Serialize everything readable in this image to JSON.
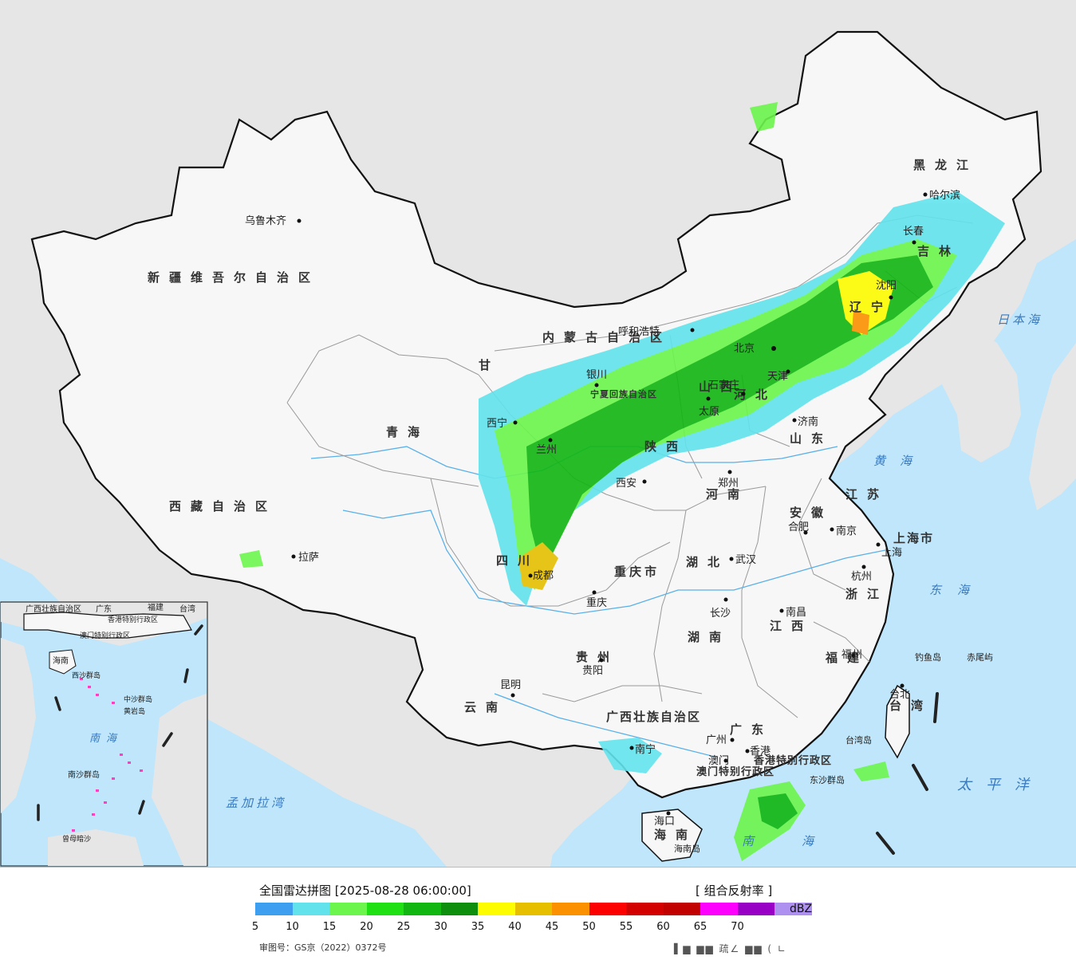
{
  "colors": {
    "ocean": "#bfe6fb",
    "foreign_land": "#e6e6e6",
    "china_land": "#f7f7f7",
    "border": "#111111",
    "province_border": "#9a9a9a",
    "river": "#5ab0e8"
  },
  "regions": {
    "xinjiang": "新疆维吾尔自治区",
    "xizang": "西藏自治区",
    "qinghai": "青海",
    "gansu": "甘",
    "sichuan": "四川",
    "yunnan": "云南",
    "guizhou": "贵州",
    "guangxi": "广西壮族自治区",
    "guangdong": "广东",
    "hunan": "湖南",
    "hubei": "湖北",
    "henan": "河南",
    "shaanxi": "陕西",
    "shanxi": "山西",
    "hebei": "河北",
    "shandong": "山东",
    "jiangsu": "江苏",
    "anhui": "安徽",
    "zhejiang": "浙江",
    "jiangxi": "江西",
    "fujian": "福建",
    "taiwan": "台湾",
    "hainan": "海南",
    "neimenggu": "内蒙古自治区",
    "heilongjiang": "黑龙江",
    "jilin": "吉林",
    "liaoning": "辽宁",
    "ningxia": "宁夏回族自治区",
    "chongqing": "重庆市",
    "shanghai": "上海市",
    "hk": "香港特别行政区",
    "macau": "澳门特别行政区"
  },
  "cities": {
    "urumqi": "乌鲁木齐",
    "lhasa": "拉萨",
    "xining": "西宁",
    "lanzhou": "兰州",
    "yinchuan": "银川",
    "hohhot": "呼和浩特",
    "beijing": "北京",
    "tianjin": "天津",
    "shijiazhuang": "石家庄",
    "taiyuan": "太原",
    "jinan": "济南",
    "xian": "西安",
    "zhengzhou": "郑州",
    "hefei": "合肥",
    "nanjing": "南京",
    "shanghai": "上海",
    "hangzhou": "杭州",
    "wuhan": "武汉",
    "chengdu": "成都",
    "chongqing": "重庆",
    "changsha": "长沙",
    "nanchang": "南昌",
    "fuzhou": "福州",
    "taipei": "台北",
    "guiyang": "贵阳",
    "kunming": "昆明",
    "nanning": "南宁",
    "guangzhou": "广州",
    "hongkong": "香港",
    "macau": "澳门",
    "haikou": "海口",
    "shenyang": "沈阳",
    "changchun": "长春",
    "harbin": "哈尔滨"
  },
  "islands": {
    "diaoyu": "钓鱼岛",
    "chiwei": "赤尾屿",
    "taiwan_island": "台湾岛",
    "dongsha": "东沙群岛",
    "hainan_island": "海南岛"
  },
  "seas": {
    "japan_sea": "日本海",
    "yellow_sea": "黄海",
    "east_sea": "东海",
    "pacific": "太平洋",
    "bengal": "孟加拉湾",
    "south_sea": "南海",
    "south_sea_inset": "南海"
  },
  "inset": {
    "guangxi": "广西壮族自治区",
    "guangdong": "广东",
    "fujian": "福建",
    "taiwan": "台湾",
    "hk": "香港特别行政区",
    "macau": "澳门特别行政区",
    "hainan": "海南",
    "xisha": "西沙群岛",
    "zhongsha": "中沙群岛",
    "huangyan": "黄岩岛",
    "nansha": "南沙群岛",
    "zengmu": "曾母暗沙"
  },
  "legend": {
    "title": "全国雷达拼图 [2025-08-28 06:00:00]",
    "product": "[ 组合反射率 ]",
    "unit": "dBZ",
    "review_no": "审图号：GS京（2022）0372号",
    "watermark": "▌▆ ▆▆ 疏∠ ▆▆ ( ∟",
    "scale": [
      {
        "color": "#3e9ff0",
        "label": "5"
      },
      {
        "color": "#62e3ec",
        "label": "10"
      },
      {
        "color": "#6cf54c",
        "label": "15"
      },
      {
        "color": "#1ee013",
        "label": "20"
      },
      {
        "color": "#11b611",
        "label": "25"
      },
      {
        "color": "#0d8e0d",
        "label": "30"
      },
      {
        "color": "#fdfc00",
        "label": "35"
      },
      {
        "color": "#e6c000",
        "label": "40"
      },
      {
        "color": "#fb9000",
        "label": "45"
      },
      {
        "color": "#fc0000",
        "label": "50"
      },
      {
        "color": "#d30000",
        "label": "55"
      },
      {
        "color": "#c10000",
        "label": "60"
      },
      {
        "color": "#fe00fe",
        "label": "65"
      },
      {
        "color": "#9800c6",
        "label": "70"
      },
      {
        "color": "#ae90f0",
        "label": ""
      }
    ]
  }
}
